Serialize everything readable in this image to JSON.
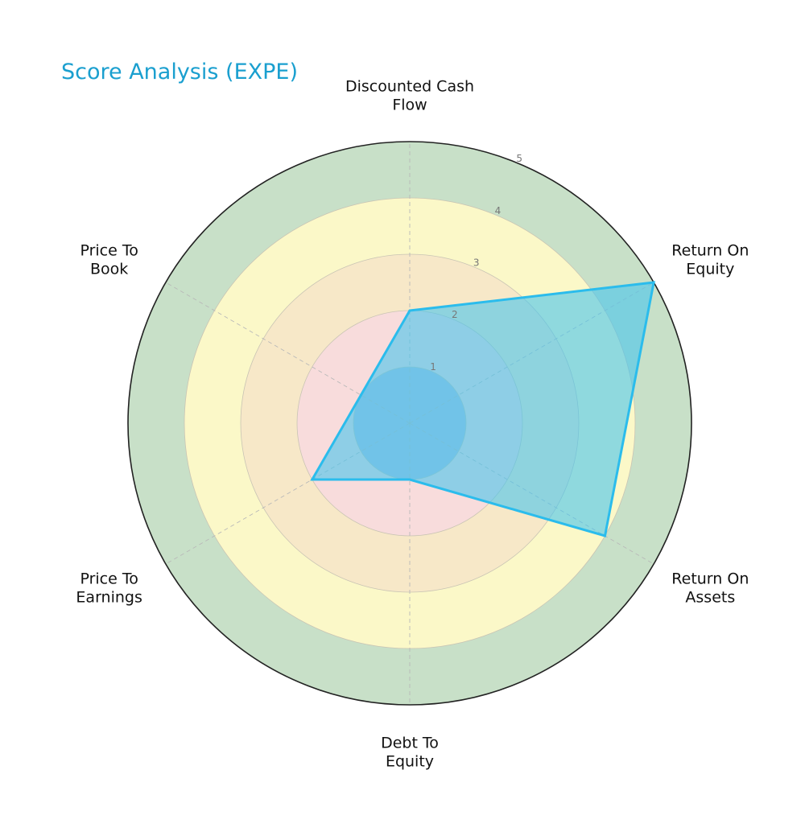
{
  "chart_data": {
    "type": "radar",
    "title": "Score Analysis (EXPE)",
    "categories": [
      [
        "Discounted Cash",
        "Flow"
      ],
      [
        "Return On",
        "Equity"
      ],
      [
        "Return On",
        "Assets"
      ],
      [
        "Debt To",
        "Equity"
      ],
      [
        "Price To",
        "Earnings"
      ],
      [
        "Price To",
        "Book"
      ]
    ],
    "values": [
      2,
      5,
      4,
      1,
      2,
      1
    ],
    "rlim": [
      0,
      5
    ],
    "rticks": [
      1,
      2,
      3,
      4,
      5
    ],
    "grid": true,
    "colors": {
      "title": "#1a9fcf",
      "series_line": "#2bbcec",
      "series_fill": "rgba(72,196,236,0.6)",
      "band_1": "#b0c0e0",
      "band_2": "#f8dcdc",
      "band_3": "#f7e8c8",
      "band_4": "#fbf8c8",
      "band_5": "#c8e0c8"
    }
  }
}
